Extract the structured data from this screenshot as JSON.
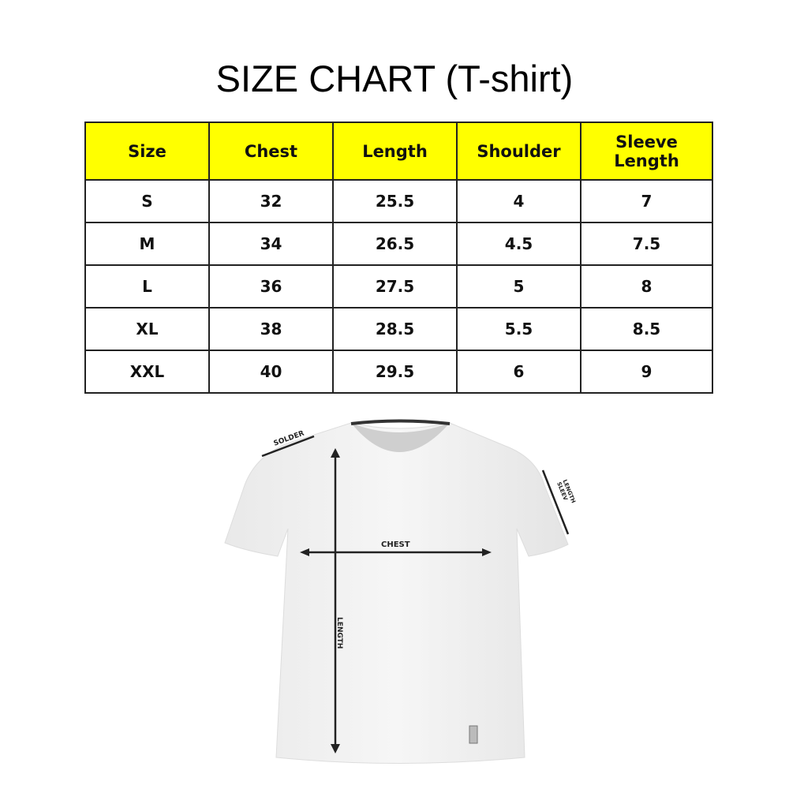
{
  "title": "SIZE CHART (T-shirt)",
  "table": {
    "header_color": "#ffff00",
    "headers": [
      "Size",
      "Chest",
      "Length",
      "Shoulder",
      "Sleeve Length"
    ],
    "rows": [
      [
        "S",
        "32",
        "25.5",
        "4",
        "7"
      ],
      [
        "M",
        "34",
        "26.5",
        "4.5",
        "7.5"
      ],
      [
        "L",
        "36",
        "27.5",
        "5",
        "8"
      ],
      [
        "XL",
        "38",
        "28.5",
        "5.5",
        "8.5"
      ],
      [
        "XXL",
        "40",
        "29.5",
        "6",
        "9"
      ]
    ]
  },
  "diagram": {
    "shoulder_label": "SOLDER",
    "chest_label": "CHEST",
    "length_label": "LENGTH",
    "sleeve_label_line1": "SLEEV",
    "sleeve_label_line2": "LENGTH"
  }
}
